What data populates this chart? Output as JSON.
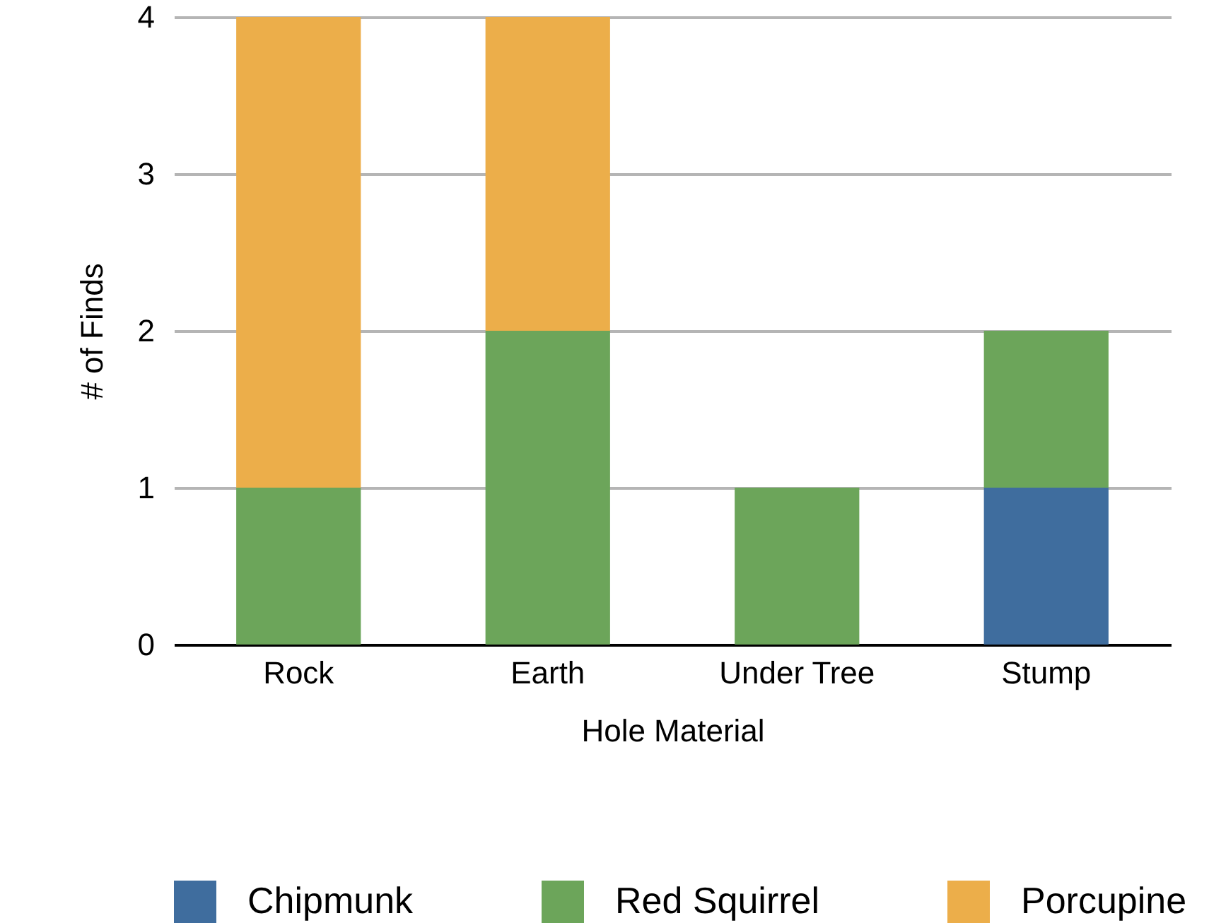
{
  "chart_data": {
    "type": "bar",
    "stacked": true,
    "xlabel": "Hole Material",
    "ylabel": "# of Finds",
    "categories": [
      "Rock",
      "Earth",
      "Under Tree",
      "Stump"
    ],
    "series": [
      {
        "name": "Chipmunk",
        "color": "#3f6d9e",
        "values": [
          0,
          0,
          0,
          1
        ]
      },
      {
        "name": "Red Squirrel",
        "color": "#6ca55a",
        "values": [
          1,
          2,
          1,
          1
        ]
      },
      {
        "name": "Porcupine",
        "color": "#ecae4a",
        "values": [
          3,
          2,
          0,
          0
        ]
      }
    ],
    "ylim": [
      0,
      4
    ],
    "yticks": [
      0,
      1,
      2,
      3,
      4
    ],
    "grid": "y",
    "legend": "bottom"
  }
}
